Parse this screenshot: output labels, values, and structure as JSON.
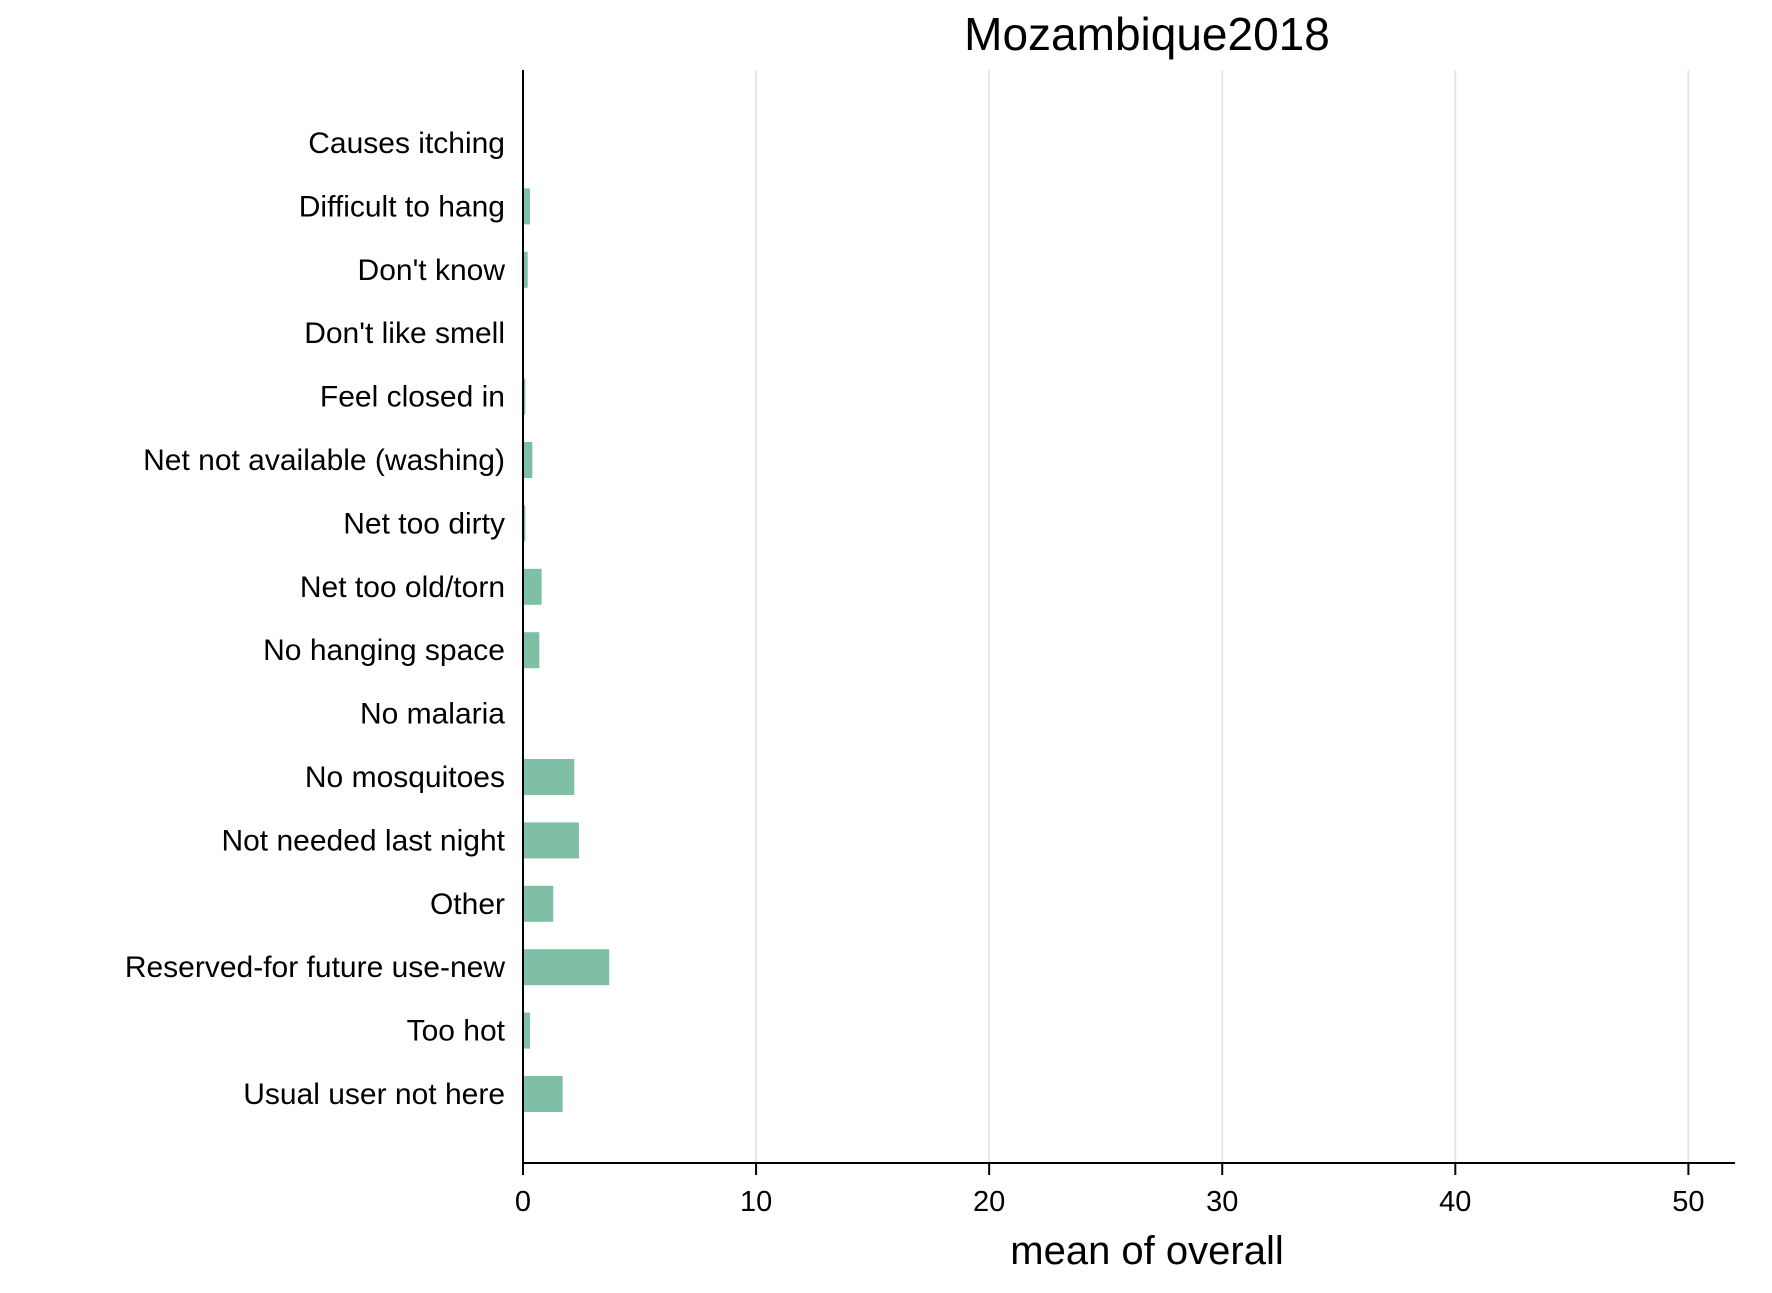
{
  "chart_data": {
    "type": "bar",
    "orientation": "horizontal",
    "title": "Mozambique2018",
    "xlabel": "mean of overall",
    "ylabel": "",
    "xlim": [
      0,
      52
    ],
    "xticks": [
      0,
      10,
      20,
      30,
      40,
      50
    ],
    "grid": "vertical",
    "legend": "none",
    "bar_color": "#7fbfa5",
    "categories": [
      "Causes itching",
      "Difficult to hang",
      "Don't know",
      "Don't like smell",
      "Feel closed in",
      "Net not available (washing)",
      "Net too dirty",
      "Net too old/torn",
      "No hanging space",
      "No malaria",
      "No mosquitoes",
      "Not needed last night",
      "Other",
      "Reserved-for future use-new",
      "Too hot",
      "Usual user not here"
    ],
    "values": [
      0,
      0.3,
      0.2,
      0,
      0.1,
      0.4,
      0.1,
      0.8,
      0.7,
      0,
      2.2,
      2.4,
      1.3,
      3.7,
      0.3,
      1.7
    ]
  }
}
